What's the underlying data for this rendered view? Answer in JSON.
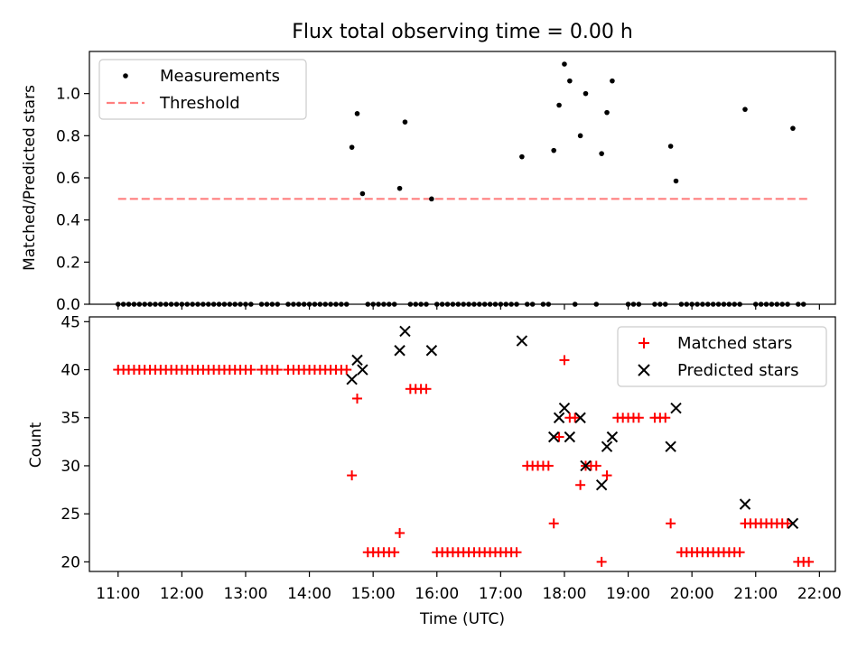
{
  "chart_data": [
    {
      "type": "scatter",
      "title": "Flux total observing time = 0.00 h",
      "xlabel": "",
      "ylabel": "Matched/Predicted stars",
      "xlim": [
        "10:33",
        "22:15"
      ],
      "ylim": [
        0,
        1.2
      ],
      "yticks": [
        "0.0",
        "0.2",
        "0.4",
        "0.6",
        "0.8",
        "1.0"
      ],
      "legend": {
        "placement": "upper-left",
        "entries": [
          "Measurements",
          "Threshold"
        ]
      },
      "colors": {
        "measurements": "#000000",
        "threshold": "#ff7f7f"
      },
      "threshold": {
        "name": "Threshold",
        "y": 0.5,
        "x": [
          "11:00",
          "21:50"
        ]
      },
      "series": [
        {
          "name": "Measurements",
          "points": [
            [
              "14:40",
              0.745
            ],
            [
              "14:45",
              0.905
            ],
            [
              "14:50",
              0.525
            ],
            [
              "15:25",
              0.55
            ],
            [
              "15:30",
              0.865
            ],
            [
              "15:55",
              0.5
            ],
            [
              "17:20",
              0.7
            ],
            [
              "17:50",
              0.73
            ],
            [
              "17:55",
              0.945
            ],
            [
              "18:00",
              1.14
            ],
            [
              "18:05",
              1.06
            ],
            [
              "18:15",
              0.8
            ],
            [
              "18:20",
              1.0
            ],
            [
              "18:35",
              0.715
            ],
            [
              "18:40",
              0.91
            ],
            [
              "18:45",
              1.06
            ],
            [
              "19:40",
              0.75
            ],
            [
              "19:45",
              0.585
            ],
            [
              "20:50",
              0.925
            ],
            [
              "21:35",
              0.835
            ]
          ],
          "zero_value_times": [
            "11:00",
            "11:05",
            "11:10",
            "11:15",
            "11:20",
            "11:25",
            "11:30",
            "11:35",
            "11:40",
            "11:45",
            "11:50",
            "11:55",
            "12:00",
            "12:05",
            "12:10",
            "12:15",
            "12:20",
            "12:25",
            "12:30",
            "12:35",
            "12:40",
            "12:45",
            "12:50",
            "12:55",
            "13:00",
            "13:05",
            "13:15",
            "13:20",
            "13:25",
            "13:30",
            "13:40",
            "13:45",
            "13:50",
            "13:55",
            "14:00",
            "14:05",
            "14:10",
            "14:15",
            "14:20",
            "14:25",
            "14:30",
            "14:35",
            "14:55",
            "15:00",
            "15:05",
            "15:10",
            "15:15",
            "15:20",
            "15:35",
            "15:40",
            "15:45",
            "15:50",
            "16:00",
            "16:05",
            "16:10",
            "16:15",
            "16:20",
            "16:25",
            "16:30",
            "16:35",
            "16:40",
            "16:45",
            "16:50",
            "16:55",
            "17:00",
            "17:05",
            "17:10",
            "17:15",
            "17:25",
            "17:30",
            "17:40",
            "17:45",
            "18:10",
            "18:30",
            "19:00",
            "19:05",
            "19:10",
            "19:25",
            "19:30",
            "19:35",
            "19:50",
            "19:55",
            "20:00",
            "20:05",
            "20:10",
            "20:15",
            "20:20",
            "20:25",
            "20:30",
            "20:35",
            "20:40",
            "20:45",
            "21:00",
            "21:05",
            "21:10",
            "21:15",
            "21:20",
            "21:25",
            "21:30",
            "21:40",
            "21:45"
          ]
        }
      ]
    },
    {
      "type": "scatter",
      "title": "",
      "xlabel": "Time (UTC)",
      "ylabel": "Count",
      "xlim": [
        "10:33",
        "22:15"
      ],
      "ylim": [
        19,
        45.5
      ],
      "yticks": [
        "20",
        "25",
        "30",
        "35",
        "40",
        "45"
      ],
      "xticks": [
        "11:00",
        "12:00",
        "13:00",
        "14:00",
        "15:00",
        "16:00",
        "17:00",
        "18:00",
        "19:00",
        "20:00",
        "21:00",
        "22:00"
      ],
      "legend": {
        "placement": "upper-right",
        "entries": [
          "Matched stars",
          "Predicted stars"
        ]
      },
      "colors": {
        "matched": "#ff0000",
        "predicted": "#000000"
      },
      "series": [
        {
          "name": "Matched stars",
          "marker": "plus",
          "groups": [
            {
              "y": 40,
              "times": [
                "11:00",
                "11:05",
                "11:10",
                "11:15",
                "11:20",
                "11:25",
                "11:30",
                "11:35",
                "11:40",
                "11:45",
                "11:50",
                "11:55",
                "12:00",
                "12:05",
                "12:10",
                "12:15",
                "12:20",
                "12:25",
                "12:30",
                "12:35",
                "12:40",
                "12:45",
                "12:50",
                "12:55",
                "13:00",
                "13:05",
                "13:15",
                "13:20",
                "13:25",
                "13:30",
                "13:40",
                "13:45",
                "13:50",
                "13:55",
                "14:00",
                "14:05",
                "14:10",
                "14:15",
                "14:20",
                "14:25",
                "14:30",
                "14:35"
              ]
            },
            {
              "y": 21,
              "times": [
                "14:55",
                "15:00",
                "15:05",
                "15:10",
                "15:15",
                "15:20",
                "16:00",
                "16:05",
                "16:10",
                "16:15",
                "16:20",
                "16:25",
                "16:30",
                "16:35",
                "16:40",
                "16:45",
                "16:50",
                "16:55",
                "17:00",
                "17:05",
                "17:10",
                "17:15",
                "19:50",
                "19:55",
                "20:00",
                "20:05",
                "20:10",
                "20:15",
                "20:20",
                "20:25",
                "20:30",
                "20:35",
                "20:40",
                "20:45"
              ]
            },
            {
              "y": 38,
              "times": [
                "15:35",
                "15:40",
                "15:45",
                "15:50"
              ]
            },
            {
              "y": 30,
              "times": [
                "17:25",
                "17:30",
                "17:35",
                "17:40",
                "17:45",
                "18:25",
                "18:30"
              ]
            },
            {
              "y": 35,
              "times": [
                "18:10",
                "18:50",
                "18:55",
                "19:00",
                "19:05",
                "19:10",
                "19:25",
                "19:30",
                "19:35"
              ]
            },
            {
              "y": 24,
              "times": [
                "17:50",
                "19:40",
                "20:50",
                "20:55",
                "21:00",
                "21:05",
                "21:10",
                "21:15",
                "21:20",
                "21:25",
                "21:30"
              ]
            },
            {
              "y": 20,
              "times": [
                "18:35",
                "21:40",
                "21:45",
                "21:50"
              ]
            }
          ],
          "points": [
            [
              "14:40",
              29
            ],
            [
              "14:45",
              37
            ],
            [
              "15:25",
              23
            ],
            [
              "17:55",
              33
            ],
            [
              "18:00",
              41
            ],
            [
              "18:05",
              35
            ],
            [
              "18:15",
              28
            ],
            [
              "18:20",
              30
            ],
            [
              "18:40",
              29
            ]
          ]
        },
        {
          "name": "Predicted stars",
          "marker": "x",
          "points": [
            [
              "14:40",
              39
            ],
            [
              "14:45",
              41
            ],
            [
              "14:50",
              40
            ],
            [
              "15:25",
              42
            ],
            [
              "15:30",
              44
            ],
            [
              "15:55",
              42
            ],
            [
              "17:20",
              43
            ],
            [
              "17:50",
              33
            ],
            [
              "17:55",
              35
            ],
            [
              "18:00",
              36
            ],
            [
              "18:05",
              33
            ],
            [
              "18:15",
              35
            ],
            [
              "18:20",
              30
            ],
            [
              "18:35",
              28
            ],
            [
              "18:40",
              32
            ],
            [
              "18:45",
              33
            ],
            [
              "19:40",
              32
            ],
            [
              "19:45",
              36
            ],
            [
              "20:50",
              26
            ],
            [
              "21:35",
              24
            ]
          ]
        }
      ]
    }
  ]
}
